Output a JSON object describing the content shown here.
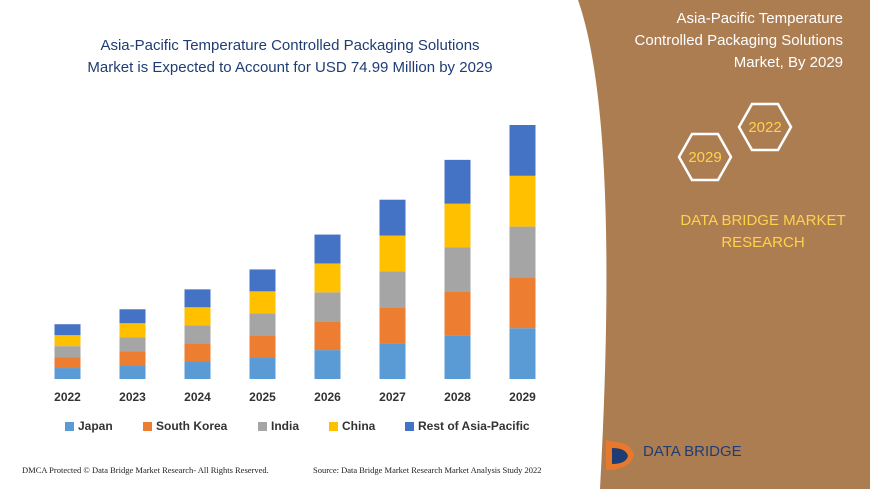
{
  "chart_data": {
    "type": "stacked_bar",
    "title": [
      "Asia-Pacific Temperature Controlled Packaging Solutions",
      "Market is Expected to Account for USD 74.99 Million by 2029"
    ],
    "categories": [
      "2022",
      "2023",
      "2024",
      "2025",
      "2026",
      "2027",
      "2028",
      "2029"
    ],
    "series": [
      {
        "name": "Japan",
        "color": "#5b9bd5",
        "values": [
          11,
          14,
          18,
          22,
          29,
          36,
          44,
          51
        ]
      },
      {
        "name": "South Korea",
        "color": "#ed7d31",
        "values": [
          11,
          14,
          18,
          22,
          29,
          36,
          44,
          51
        ]
      },
      {
        "name": "India",
        "color": "#a5a5a5",
        "values": [
          11,
          14,
          18,
          22,
          29,
          36,
          44,
          51
        ]
      },
      {
        "name": "China",
        "color": "#ffc000",
        "values": [
          11,
          14,
          18,
          22,
          29,
          36,
          44,
          51
        ]
      },
      {
        "name": "Rest of Asia-Pacific",
        "color": "#4472c4",
        "values": [
          11,
          14,
          18,
          22,
          29,
          36,
          44,
          51
        ]
      }
    ],
    "ylim": [
      0,
      255
    ]
  },
  "panel": {
    "title": [
      "Asia-Pacific Temperature",
      "Controlled Packaging Solutions",
      "Market, By 2029"
    ],
    "hex_labels": [
      "2022",
      "2029"
    ],
    "brand": [
      "DATA BRIDGE MARKET",
      "RESEARCH"
    ]
  },
  "logo": "DATA BRIDGE",
  "footer": {
    "left": "DMCA Protected © Data Bridge Market Research- All Rights Reserved.",
    "right": "Source: Data Bridge Market Research Market Analysis Study 2022"
  }
}
